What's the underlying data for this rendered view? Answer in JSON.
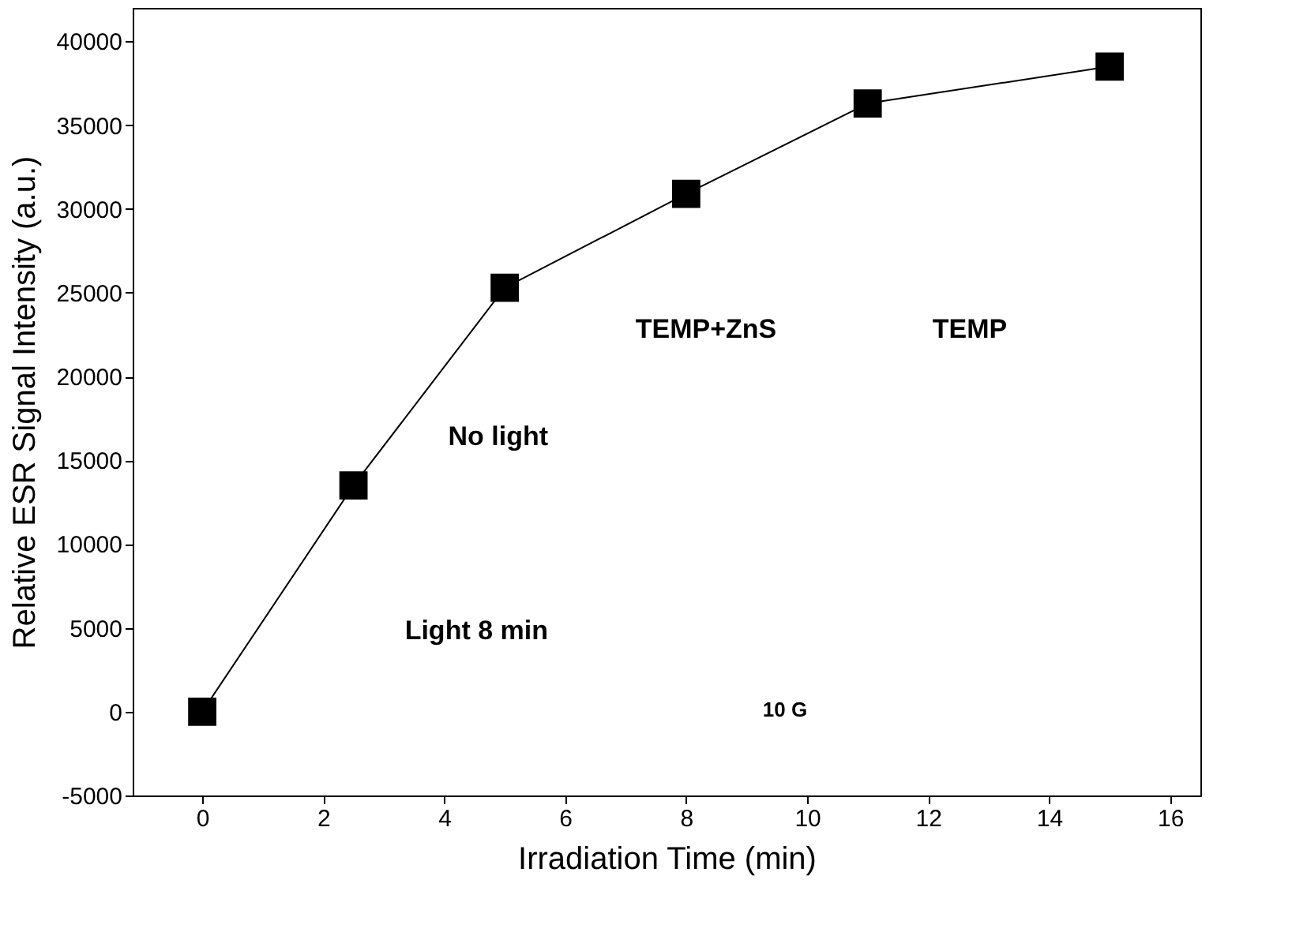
{
  "chart_data": {
    "type": "line",
    "xlabel": "Irradiation Time (min)",
    "ylabel": "Relative ESR Signal Intensity (a.u.)",
    "x": [
      0,
      2.5,
      5,
      8,
      11,
      15
    ],
    "series": [
      {
        "color": "#000000",
        "values": [
          0,
          13500,
          25300,
          30900,
          36300,
          38500
        ]
      }
    ],
    "xlim": [
      -1.15,
      16.5
    ],
    "xticks": [
      0,
      2,
      4,
      6,
      8,
      10,
      12,
      14,
      16
    ],
    "ylim": [
      -5000,
      42000
    ],
    "yticks": [
      -5000,
      0,
      5000,
      10000,
      15000,
      20000,
      25000,
      30000,
      35000,
      40000
    ],
    "grid": false,
    "marker": "square",
    "line_style": "solid",
    "annotations": [
      "TEMP+ZnS",
      "TEMP",
      "No light",
      "Light 8 min",
      "10 G"
    ]
  }
}
